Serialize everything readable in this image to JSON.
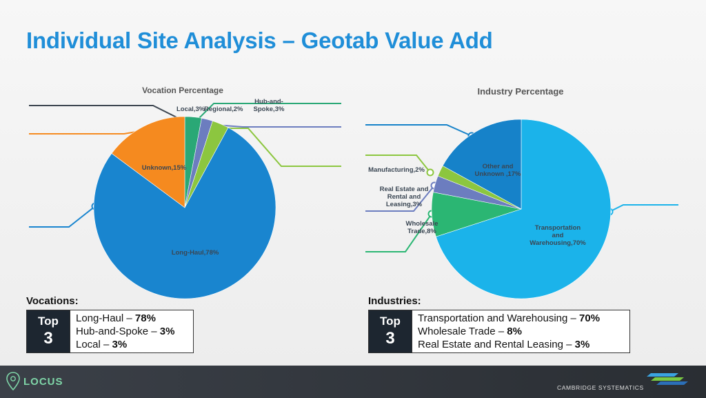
{
  "slide": {
    "title": "Individual Site Analysis – Geotab Value Add"
  },
  "chart_data": [
    {
      "type": "pie",
      "title": "Vocation Percentage",
      "slices": [
        {
          "label": "Local,3%",
          "value": 3,
          "color": "#2aa876"
        },
        {
          "label": "Regional,2%",
          "value": 2,
          "color": "#6c7dbf"
        },
        {
          "label": "Hub-and-Spoke,3%",
          "value": 3,
          "color": "#8cc63f"
        },
        {
          "label": "Long-Haul,78%",
          "value": 78,
          "color": "#1985cf"
        },
        {
          "label": "Unknown,15%",
          "value": 15,
          "color": "#f58a1f"
        }
      ],
      "leader_colors": [
        "#3d4650",
        "#f58a1f",
        "#2aa876",
        "#6c7dbf",
        "#8cc63f",
        "#1985cf"
      ]
    },
    {
      "type": "pie",
      "title": "Industry Percentage",
      "slices": [
        {
          "label": "Transportation and Warehousing,70%",
          "value": 70,
          "color": "#1bb3ea"
        },
        {
          "label": "Wholesale Trade,8%",
          "value": 8,
          "color": "#2bb673"
        },
        {
          "label": "Real Estate and Rental and Leasing,3%",
          "value": 3,
          "color": "#6c7dbf"
        },
        {
          "label": "Manufacturing,2%",
          "value": 2,
          "color": "#8cc63f"
        },
        {
          "label": "Other and Unknown ,17%",
          "value": 17,
          "color": "#1682c9"
        }
      ],
      "leader_colors": [
        "#1682c9",
        "#8cc63f",
        "#6c7dbf",
        "#2bb673",
        "#1bb3ea"
      ]
    }
  ],
  "vocations": {
    "heading": "Vocations:",
    "badge_top": "Top",
    "badge_num": "3",
    "items": [
      {
        "name": "Long-Haul – ",
        "pct": "78%"
      },
      {
        "name": "Hub-and-Spoke – ",
        "pct": "3%"
      },
      {
        "name": "Local – ",
        "pct": "3%"
      }
    ]
  },
  "industries": {
    "heading": "Industries:",
    "badge_top": "Top",
    "badge_num": "3",
    "items": [
      {
        "name": "Transportation and Warehousing – ",
        "pct": "70%"
      },
      {
        "name": "Wholesale Trade – ",
        "pct": "8%"
      },
      {
        "name": "Real Estate and Rental Leasing – ",
        "pct": "3%"
      }
    ]
  },
  "footer": {
    "locus_logo": "LOCUS",
    "cs_logo": "CAMBRIDGE SYSTEMATICS",
    "colors": {
      "bg": "#2f3338",
      "locus": "#7fd6a8"
    }
  }
}
